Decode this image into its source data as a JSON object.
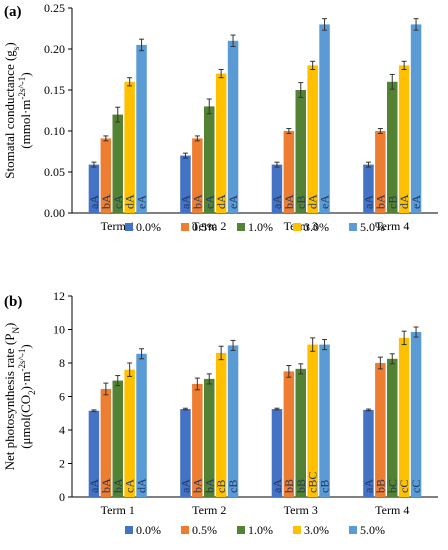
{
  "panels": [
    {
      "letter": "(a)"
    },
    {
      "letter": "(b)"
    }
  ],
  "colors": [
    "#4472c4",
    "#ed7d31",
    "#548235",
    "#ffc000",
    "#5b9bd5"
  ],
  "chart_data": [
    {
      "type": "bar",
      "title": "",
      "xlabel": "",
      "ylabel_lines": [
        "Stomatal conductance (g_s)",
        "(mmol·m^-2s^-1)"
      ],
      "ylim": [
        0,
        0.25
      ],
      "yticks": [
        "0.00",
        "0.05",
        "0.10",
        "0.15",
        "0.20",
        "0.25"
      ],
      "grid": false,
      "legend_position": "bottom",
      "categories": [
        "Term 1",
        "Term 2",
        "Term 3",
        "Term 4"
      ],
      "series": [
        {
          "name": "0.0%",
          "values": [
            0.059,
            0.07,
            0.059,
            0.059
          ],
          "errors": [
            0.003,
            0.003,
            0.003,
            0.003
          ],
          "labels": [
            "aA",
            "aA",
            "aA",
            "aA"
          ]
        },
        {
          "name": "0.5%",
          "values": [
            0.091,
            0.091,
            0.1,
            0.1
          ],
          "errors": [
            0.003,
            0.003,
            0.003,
            0.003
          ],
          "labels": [
            "bA",
            "bA",
            "bA",
            "bA"
          ]
        },
        {
          "name": "1.0%",
          "values": [
            0.12,
            0.13,
            0.15,
            0.16
          ],
          "errors": [
            0.009,
            0.009,
            0.009,
            0.009
          ],
          "labels": [
            "cA",
            "cA",
            "cB",
            "cB"
          ]
        },
        {
          "name": "3.0%",
          "values": [
            0.16,
            0.17,
            0.18,
            0.18
          ],
          "errors": [
            0.005,
            0.005,
            0.005,
            0.005
          ],
          "labels": [
            "dA",
            "dA",
            "dA",
            "dA"
          ]
        },
        {
          "name": "5.0%",
          "values": [
            0.205,
            0.21,
            0.23,
            0.23
          ],
          "errors": [
            0.007,
            0.007,
            0.007,
            0.007
          ],
          "labels": [
            "eA",
            "eA",
            "eA",
            "eA"
          ]
        }
      ]
    },
    {
      "type": "bar",
      "title": "",
      "xlabel": "",
      "ylabel_lines": [
        "Net photosynthesis rate (P_N)",
        "(μmol(CO_2)·m^-2s^-1)"
      ],
      "ylim": [
        0,
        12
      ],
      "yticks": [
        "0",
        "2",
        "4",
        "6",
        "8",
        "10",
        "12"
      ],
      "grid": false,
      "legend_position": "bottom",
      "categories": [
        "Term 1",
        "Term 2",
        "Term 3",
        "Term 4"
      ],
      "series": [
        {
          "name": "0.0%",
          "values": [
            5.15,
            5.25,
            5.25,
            5.2
          ],
          "errors": [
            0.05,
            0.05,
            0.05,
            0.05
          ],
          "labels": [
            "aA",
            "aA",
            "aA",
            "aA"
          ]
        },
        {
          "name": "0.5%",
          "values": [
            6.45,
            6.75,
            7.5,
            8.0
          ],
          "errors": [
            0.35,
            0.35,
            0.35,
            0.35
          ],
          "labels": [
            "bA",
            "bA",
            "bB",
            "bB"
          ]
        },
        {
          "name": "1.0%",
          "values": [
            6.95,
            7.05,
            7.65,
            8.25
          ],
          "errors": [
            0.3,
            0.3,
            0.3,
            0.3
          ],
          "labels": [
            "bA",
            "bA",
            "bB",
            "bC"
          ]
        },
        {
          "name": "3.0%",
          "values": [
            7.6,
            8.6,
            9.1,
            9.5
          ],
          "errors": [
            0.4,
            0.4,
            0.4,
            0.4
          ],
          "labels": [
            "cA",
            "cB",
            "cBC",
            "cC"
          ]
        },
        {
          "name": "5.0%",
          "values": [
            8.55,
            9.05,
            9.1,
            9.85
          ],
          "errors": [
            0.3,
            0.3,
            0.3,
            0.3
          ],
          "labels": [
            "dA",
            "cB",
            "cB",
            "cC"
          ]
        }
      ]
    }
  ]
}
